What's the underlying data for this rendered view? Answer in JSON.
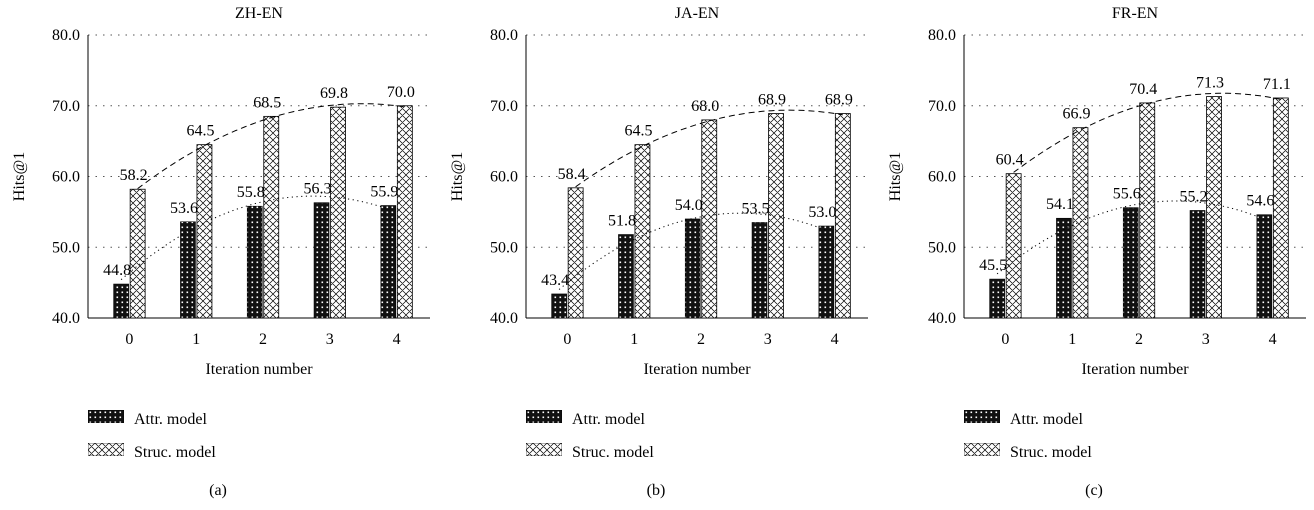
{
  "chart_data": [
    {
      "type": "bar",
      "title": "ZH-EN",
      "xlabel": "Iteration number",
      "ylabel": "Hits@1",
      "ylim": [
        40.0,
        80.0
      ],
      "yticks": [
        "40.0",
        "50.0",
        "60.0",
        "70.0",
        "80.0"
      ],
      "categories": [
        "0",
        "1",
        "2",
        "3",
        "4"
      ],
      "series": [
        {
          "name": "Attr. model",
          "values": [
            44.8,
            53.6,
            55.8,
            56.3,
            55.9
          ],
          "labels": [
            "44.8",
            "53.6",
            "55.8",
            "56.3",
            "55.9"
          ]
        },
        {
          "name": "Struc. model",
          "values": [
            58.2,
            64.5,
            68.5,
            69.8,
            70.0
          ],
          "labels": [
            "58.2",
            "64.5",
            "68.5",
            "69.8",
            "70.0"
          ]
        }
      ],
      "grid": "horizontal dotted",
      "trendlines": "dotted curve over Attr. model, dashed curve over Struc. model",
      "legend_position": "bottom-left",
      "caption": "(a)"
    },
    {
      "type": "bar",
      "title": "JA-EN",
      "xlabel": "Iteration number",
      "ylabel": "Hits@1",
      "ylim": [
        40.0,
        80.0
      ],
      "yticks": [
        "40.0",
        "50.0",
        "60.0",
        "70.0",
        "80.0"
      ],
      "categories": [
        "0",
        "1",
        "2",
        "3",
        "4"
      ],
      "series": [
        {
          "name": "Attr. model",
          "values": [
            43.4,
            51.8,
            54.0,
            53.5,
            53.0
          ],
          "labels": [
            "43.4",
            "51.8",
            "54.0",
            "53.5",
            "53.0"
          ]
        },
        {
          "name": "Struc. model",
          "values": [
            58.4,
            64.5,
            68.0,
            68.9,
            68.9
          ],
          "labels": [
            "58.4",
            "64.5",
            "68.0",
            "68.9",
            "68.9"
          ]
        }
      ],
      "grid": "horizontal dotted",
      "trendlines": "dotted curve over Attr. model, dashed curve over Struc. model",
      "legend_position": "bottom-left",
      "caption": "(b)"
    },
    {
      "type": "bar",
      "title": "FR-EN",
      "xlabel": "Iteration number",
      "ylabel": "Hits@1",
      "ylim": [
        40.0,
        80.0
      ],
      "yticks": [
        "40.0",
        "50.0",
        "60.0",
        "70.0",
        "80.0"
      ],
      "categories": [
        "0",
        "1",
        "2",
        "3",
        "4"
      ],
      "series": [
        {
          "name": "Attr. model",
          "values": [
            45.5,
            54.1,
            55.6,
            55.2,
            54.6
          ],
          "labels": [
            "45.5",
            "54.1",
            "55.6",
            "55.2",
            "54.6"
          ]
        },
        {
          "name": "Struc. model",
          "values": [
            60.4,
            66.9,
            70.4,
            71.3,
            71.1
          ],
          "labels": [
            "60.4",
            "66.9",
            "70.4",
            "71.3",
            "71.1"
          ]
        }
      ],
      "grid": "horizontal dotted",
      "trendlines": "dotted curve over Attr. model, dashed curve over Struc. model",
      "legend_position": "bottom-left",
      "caption": "(c)"
    }
  ],
  "colors": {
    "attr_fill": "#111111",
    "attr_dots": "#ffffff",
    "struc_fill": "#ffffff",
    "struc_hatch": "#000000",
    "grid": "#555555"
  },
  "icons": {
    "attr_swatch": "dotted-black-pattern-swatch",
    "struc_swatch": "crosshatch-pattern-swatch"
  }
}
